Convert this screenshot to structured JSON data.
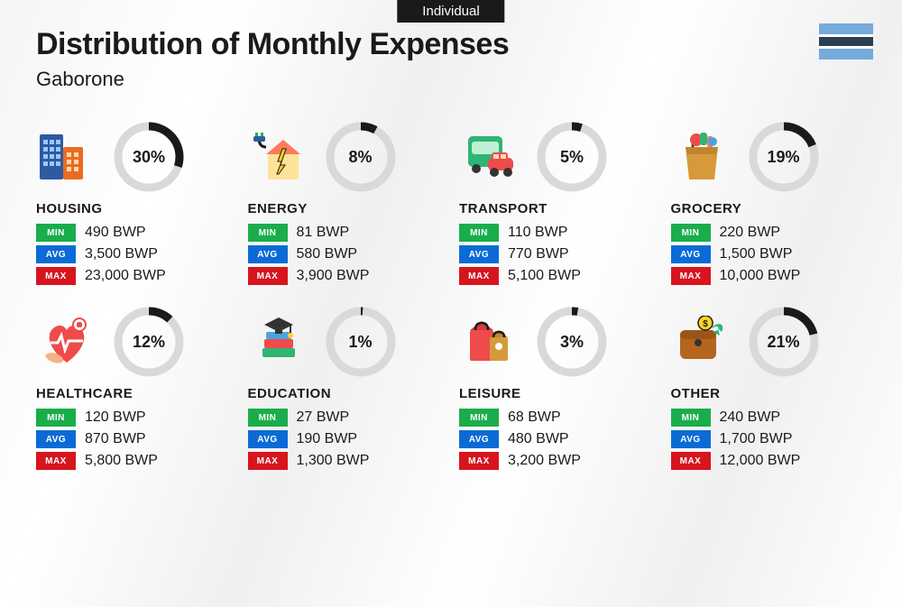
{
  "tab_label": "Individual",
  "title": "Distribution of Monthly Expenses",
  "subtitle": "Gaborone",
  "currency": "BWP",
  "labels": {
    "min": "MIN",
    "avg": "AVG",
    "max": "MAX"
  },
  "badge_colors": {
    "min": "#1aad4b",
    "avg": "#0b6bd6",
    "max": "#d6151f"
  },
  "donut": {
    "track_color": "#d9d9d9",
    "progress_color": "#1a1a1a",
    "stroke_width": 9,
    "radius": 34
  },
  "flag_colors": {
    "band": "#75aadb",
    "gap": "#ffffff",
    "mid": "#2c3e50"
  },
  "categories": [
    {
      "key": "housing",
      "name": "HOUSING",
      "pct": 30,
      "min": "490",
      "avg": "3,500",
      "max": "23,000"
    },
    {
      "key": "energy",
      "name": "ENERGY",
      "pct": 8,
      "min": "81",
      "avg": "580",
      "max": "3,900"
    },
    {
      "key": "transport",
      "name": "TRANSPORT",
      "pct": 5,
      "min": "110",
      "avg": "770",
      "max": "5,100"
    },
    {
      "key": "grocery",
      "name": "GROCERY",
      "pct": 19,
      "min": "220",
      "avg": "1,500",
      "max": "10,000"
    },
    {
      "key": "healthcare",
      "name": "HEALTHCARE",
      "pct": 12,
      "min": "120",
      "avg": "870",
      "max": "5,800"
    },
    {
      "key": "education",
      "name": "EDUCATION",
      "pct": 1,
      "min": "27",
      "avg": "190",
      "max": "1,300"
    },
    {
      "key": "leisure",
      "name": "LEISURE",
      "pct": 3,
      "min": "68",
      "avg": "480",
      "max": "3,200"
    },
    {
      "key": "other",
      "name": "OTHER",
      "pct": 21,
      "min": "240",
      "avg": "1,700",
      "max": "12,000"
    }
  ]
}
